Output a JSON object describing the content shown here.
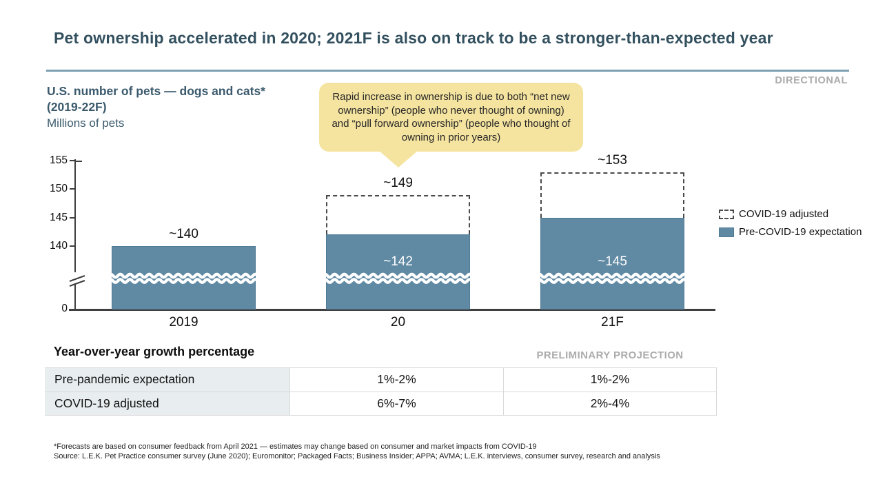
{
  "title": "Pet ownership accelerated in 2020; 2021F is also on track to be a stronger-than-expected year",
  "directional_label": "DIRECTIONAL",
  "chart_header": {
    "title_line1": "U.S. number of pets — dogs and cats*",
    "title_line2": "(2019-22F)",
    "subtitle": "Millions of pets"
  },
  "callout": {
    "text": "Rapid increase in ownership is due to both “net new ownership” (people who never thought of owning) and “pull forward ownership” (people who thought of owning in prior years)"
  },
  "chart_data": {
    "type": "bar",
    "categories": [
      "2019",
      "20",
      "21F"
    ],
    "series": [
      {
        "name": "Pre-COVID-19 expectation",
        "values": [
          140,
          142,
          145
        ]
      },
      {
        "name": "COVID-19 adjusted",
        "values": [
          null,
          149,
          153
        ]
      }
    ],
    "bar_labels": {
      "solid": [
        "~140",
        "~142",
        "~145"
      ],
      "dashed": [
        null,
        "~149",
        "~153"
      ]
    },
    "y_ticks": [
      155,
      150,
      145,
      140,
      0
    ],
    "axis_break": true,
    "ylabel": "Millions of pets",
    "ylim_visible": [
      137,
      156
    ],
    "legend_position": "right",
    "grid": false
  },
  "legend": [
    {
      "label": "COVID-19 adjusted",
      "swatch": "dashed"
    },
    {
      "label": "Pre-COVID-19 expectation",
      "swatch": "solid"
    }
  ],
  "growth_table": {
    "heading": "Year-over-year growth percentage",
    "projection_label": "PRELIMINARY PROJECTION",
    "rows": [
      {
        "label": "Pre-pandemic expectation",
        "values": [
          "1%-2%",
          "1%-2%"
        ]
      },
      {
        "label": "COVID-19 adjusted",
        "values": [
          "6%-7%",
          "2%-4%"
        ]
      }
    ]
  },
  "footnotes": [
    "*Forecasts are based on consumer feedback from April 2021 — estimates may change based on consumer and market impacts from COVID-19",
    "Source:  L.E.K. Pet Practice consumer survey (June 2020); Euromonitor; Packaged Facts; Business Insider; APPA; AVMA; L.E.K. interviews, consumer survey, research and analysis"
  ],
  "colors": {
    "accent_rule": "#7ca0b2",
    "title_text": "#33505f",
    "header_text": "#3b5a6d",
    "bar_fill": "#6089a3",
    "bar_border": "#4f7b97",
    "callout_fill": "#f5e4a0",
    "muted_label": "#ababab",
    "table_label_bg": "#e8edf0",
    "table_border": "#d9d9d9",
    "dashed_outline": "#4a4a4a"
  }
}
